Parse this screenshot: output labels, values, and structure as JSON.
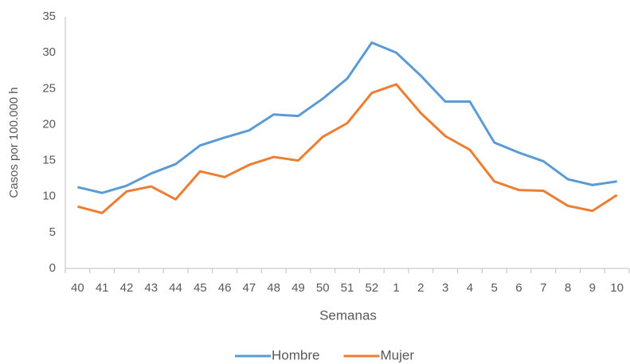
{
  "chart_data": {
    "type": "line",
    "categories": [
      "40",
      "41",
      "42",
      "43",
      "44",
      "45",
      "46",
      "47",
      "48",
      "49",
      "50",
      "51",
      "52",
      "1",
      "2",
      "3",
      "4",
      "5",
      "6",
      "7",
      "8",
      "9",
      "10"
    ],
    "series": [
      {
        "name": "Hombre",
        "color": "#5b9bd5",
        "values": [
          11.3,
          10.5,
          11.5,
          13.2,
          14.5,
          17.1,
          18.2,
          19.2,
          21.4,
          21.2,
          23.6,
          26.4,
          31.4,
          30.0,
          26.8,
          23.2,
          23.2,
          17.5,
          16.1,
          14.9,
          12.4,
          11.6,
          12.1
        ]
      },
      {
        "name": "Mujer",
        "color": "#ed7d31",
        "values": [
          8.6,
          7.7,
          10.7,
          11.4,
          9.6,
          13.5,
          12.7,
          14.4,
          15.5,
          15.0,
          18.3,
          20.2,
          24.4,
          25.6,
          21.6,
          18.4,
          16.5,
          12.1,
          10.9,
          10.8,
          8.7,
          8.0,
          10.2
        ]
      }
    ],
    "x_label": "Semanas",
    "y_label": "Casos por 100.000 h",
    "ylim": [
      0,
      35
    ],
    "yticks": [
      0,
      5,
      10,
      15,
      20,
      25,
      30,
      35
    ],
    "grid": false,
    "legend": "bottom"
  }
}
